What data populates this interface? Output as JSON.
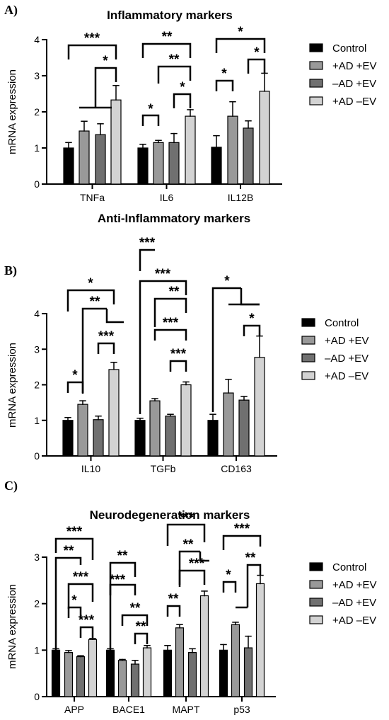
{
  "chart_data": [
    {
      "panel": "A)",
      "type": "bar",
      "title": "Inflammatory markers",
      "ylabel": "mRNA expression",
      "ylim": [
        0,
        4
      ],
      "yticks": [
        "0",
        "1",
        "2",
        "3",
        "4"
      ],
      "categories": [
        "TNFa",
        "IL6",
        "IL12B"
      ],
      "series": [
        {
          "name": "Control",
          "color": "#000000",
          "values": [
            1.0,
            1.0,
            1.02
          ],
          "errors": [
            0.15,
            0.1,
            0.32
          ]
        },
        {
          "name": "+AD +EV",
          "color": "#999999",
          "values": [
            1.47,
            1.15,
            1.88
          ],
          "errors": [
            0.27,
            0.06,
            0.4
          ]
        },
        {
          "name": "–AD +EV",
          "color": "#707070",
          "values": [
            1.37,
            1.15,
            1.55
          ],
          "errors": [
            0.3,
            0.25,
            0.2
          ]
        },
        {
          "name": "+AD –EV",
          "color": "#d3d3d3",
          "values": [
            2.33,
            1.88,
            2.57
          ],
          "errors": [
            0.4,
            0.18,
            0.5
          ]
        }
      ],
      "significance": [
        {
          "from": [
            0,
            0
          ],
          "to": [
            0,
            3
          ],
          "label": "***"
        },
        {
          "from": [
            0,
            3
          ],
          "to": [
            0,
            3
          ],
          "label": "*",
          "note": "groups 1-2 vs 3"
        },
        {
          "from": [
            1,
            0
          ],
          "to": [
            1,
            3
          ],
          "label": "**"
        },
        {
          "from": [
            1,
            1
          ],
          "to": [
            1,
            3
          ],
          "label": "**"
        },
        {
          "from": [
            1,
            0
          ],
          "to": [
            1,
            1
          ],
          "label": "*"
        },
        {
          "from": [
            1,
            2
          ],
          "to": [
            1,
            3
          ],
          "label": "*"
        },
        {
          "from": [
            2,
            0
          ],
          "to": [
            2,
            3
          ],
          "label": "*"
        },
        {
          "from": [
            2,
            0
          ],
          "to": [
            2,
            1
          ],
          "label": "*"
        },
        {
          "from": [
            2,
            2
          ],
          "to": [
            2,
            3
          ],
          "label": "*"
        }
      ]
    },
    {
      "panel": "B)",
      "type": "bar",
      "title": "Anti-Inflammatory markers",
      "ylabel": "mRNA expression",
      "ylim": [
        0,
        4
      ],
      "yticks": [
        "0",
        "1",
        "2",
        "3",
        "4"
      ],
      "categories": [
        "IL10",
        "TGFb",
        "CD163"
      ],
      "series": [
        {
          "name": "Control",
          "color": "#000000",
          "values": [
            1.0,
            1.0,
            1.0
          ],
          "errors": [
            0.08,
            0.06,
            0.17
          ]
        },
        {
          "name": "+AD +EV",
          "color": "#999999",
          "values": [
            1.45,
            1.55,
            1.77
          ],
          "errors": [
            0.1,
            0.06,
            0.38
          ]
        },
        {
          "name": "–AD +EV",
          "color": "#707070",
          "values": [
            1.02,
            1.12,
            1.57
          ],
          "errors": [
            0.1,
            0.05,
            0.1
          ]
        },
        {
          "name": "+AD –EV",
          "color": "#d3d3d3",
          "values": [
            2.43,
            2.0,
            2.77
          ],
          "errors": [
            0.2,
            0.08,
            0.6
          ]
        }
      ],
      "significance": [
        {
          "label": "*"
        },
        {
          "label": "**"
        },
        {
          "label": "*"
        },
        {
          "label": "***"
        },
        {
          "label": "***"
        },
        {
          "label": "***"
        },
        {
          "label": "**"
        },
        {
          "label": "***"
        },
        {
          "label": "***"
        },
        {
          "label": "*"
        },
        {
          "label": "*"
        }
      ]
    },
    {
      "panel": "C)",
      "type": "bar",
      "title": "Neurodegeneration markers",
      "ylabel": "mRNA expression",
      "ylim": [
        0,
        3
      ],
      "yticks": [
        "0",
        "1",
        "2",
        "3"
      ],
      "categories": [
        "APP",
        "BACE1",
        "MAPT",
        "p53"
      ],
      "series": [
        {
          "name": "Control",
          "color": "#000000",
          "values": [
            1.0,
            1.0,
            1.0,
            1.0
          ],
          "errors": [
            0.03,
            0.03,
            0.1,
            0.12
          ]
        },
        {
          "name": "+AD +EV",
          "color": "#999999",
          "values": [
            0.95,
            0.78,
            1.48,
            1.55
          ],
          "errors": [
            0.04,
            0.02,
            0.07,
            0.05
          ]
        },
        {
          "name": "–AD +EV",
          "color": "#707070",
          "values": [
            0.86,
            0.7,
            0.95,
            1.05
          ],
          "errors": [
            0.02,
            0.08,
            0.08,
            0.25
          ]
        },
        {
          "name": "+AD –EV",
          "color": "#d3d3d3",
          "values": [
            1.23,
            1.05,
            2.17,
            2.43
          ],
          "errors": [
            0.02,
            0.05,
            0.1,
            0.18
          ]
        }
      ],
      "significance": [
        {
          "label": "***"
        },
        {
          "label": "**"
        },
        {
          "label": "***"
        },
        {
          "label": "*"
        },
        {
          "label": "***"
        },
        {
          "label": "**"
        },
        {
          "label": "***"
        },
        {
          "label": "**"
        },
        {
          "label": "**"
        },
        {
          "label": "***"
        },
        {
          "label": "**"
        },
        {
          "label": "***"
        },
        {
          "label": "**"
        },
        {
          "label": "***"
        },
        {
          "label": "*"
        },
        {
          "label": "**"
        }
      ]
    }
  ]
}
